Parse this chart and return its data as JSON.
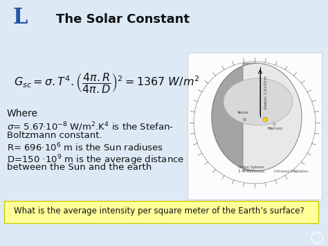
{
  "title": "The Solar Constant",
  "bg_color": "#ddeaf5",
  "title_color": "#111111",
  "title_fontsize": 13,
  "where_text": "Where",
  "question": "What is the average intensity per square meter of the Earth’s surface?",
  "question_bg": "#ffff99",
  "question_border": "#cccc00",
  "text_color": "#111111",
  "logo_color": "#2255aa",
  "header_bg": "#c8daf0",
  "diagram_bg": "#f0f0f0"
}
